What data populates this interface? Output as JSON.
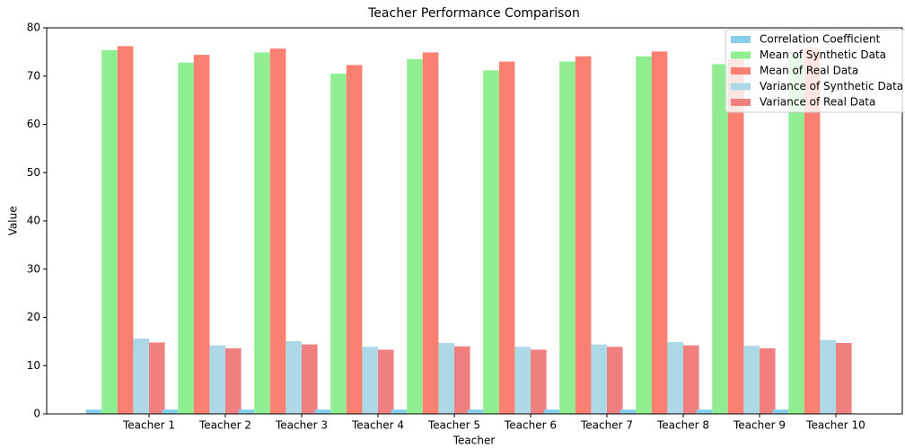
{
  "chart_data": {
    "type": "bar",
    "title": "Teacher Performance Comparison",
    "x_label": "Teacher",
    "y_label": "Value",
    "categories": [
      "Teacher 1",
      "Teacher 2",
      "Teacher 3",
      "Teacher 4",
      "Teacher 5",
      "Teacher 6",
      "Teacher 7",
      "Teacher 8",
      "Teacher 9",
      "Teacher 10"
    ],
    "series": [
      {
        "name": "Correlation Coefficient",
        "color": "#87ceeb",
        "values": [
          0.9,
          0.9,
          0.9,
          0.9,
          0.9,
          0.9,
          0.9,
          0.9,
          0.9,
          0.9
        ]
      },
      {
        "name": "Mean of Synthetic Data",
        "color": "#90ee90",
        "values": [
          75.4,
          72.8,
          74.9,
          70.5,
          73.5,
          71.2,
          73.0,
          74.1,
          72.5,
          74.5
        ]
      },
      {
        "name": "Mean of Real Data",
        "color": "#fa8072",
        "values": [
          76.2,
          74.4,
          75.7,
          72.3,
          74.9,
          73.0,
          74.1,
          75.1,
          73.5,
          75.8
        ]
      },
      {
        "name": "Variance of Synthetic Data",
        "color": "#add8e6",
        "values": [
          15.6,
          14.2,
          15.1,
          13.9,
          14.7,
          13.9,
          14.4,
          14.9,
          14.1,
          15.3
        ]
      },
      {
        "name": "Variance of Real Data",
        "color": "#f08080",
        "values": [
          14.8,
          13.6,
          14.4,
          13.3,
          14.0,
          13.3,
          13.9,
          14.2,
          13.6,
          14.7
        ]
      }
    ],
    "ylim": [
      0,
      80
    ],
    "yticks": [
      0,
      10,
      20,
      30,
      40,
      50,
      60,
      70,
      80
    ],
    "grid": false,
    "legend": "upper right"
  }
}
